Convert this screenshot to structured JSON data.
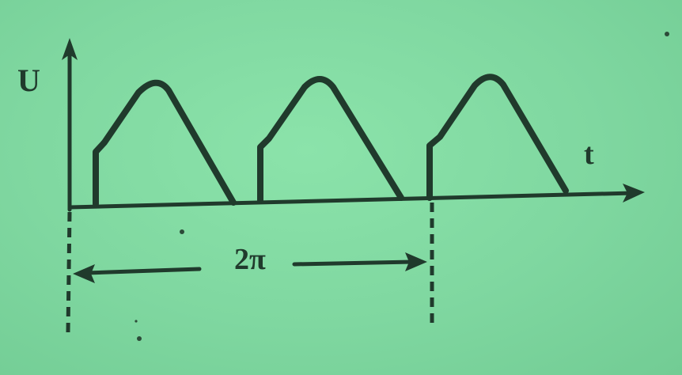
{
  "diagram": {
    "y_axis_label": "U",
    "x_axis_label": "t",
    "period_label": "2π",
    "colors": {
      "background": "#7fd8a0",
      "ink": "#203a2c"
    }
  }
}
